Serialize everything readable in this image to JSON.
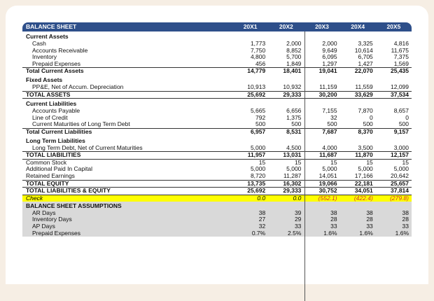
{
  "header": {
    "title": "BALANCE SHEET",
    "years": [
      "20X1",
      "20X2",
      "20X3",
      "20X4",
      "20X5"
    ]
  },
  "rows": [
    {
      "kind": "sec",
      "label": "Current Assets"
    },
    {
      "kind": "item",
      "label": "Cash",
      "values": [
        "1,773",
        "2,000",
        "2,000",
        "3,325",
        "4,816"
      ]
    },
    {
      "kind": "item",
      "label": "Accounts Receivable",
      "values": [
        "7,750",
        "8,852",
        "9,649",
        "10,614",
        "11,675"
      ]
    },
    {
      "kind": "item",
      "label": "Inventory",
      "values": [
        "4,800",
        "5,700",
        "6,095",
        "6,705",
        "7,375"
      ]
    },
    {
      "kind": "item",
      "label": "Prepaid Expenses",
      "values": [
        "456",
        "1,849",
        "1,297",
        "1,427",
        "1,569"
      ]
    },
    {
      "kind": "total",
      "label": "Total Current Assets",
      "values": [
        "14,779",
        "18,401",
        "19,041",
        "22,070",
        "25,435"
      ]
    },
    {
      "kind": "sec",
      "label": "Fixed Assets"
    },
    {
      "kind": "item",
      "label": "PP&E, Net of Accum. Depreciation",
      "values": [
        "10,913",
        "10,932",
        "11,159",
        "11,559",
        "12,099"
      ]
    },
    {
      "kind": "big",
      "label": "TOTAL ASSETS",
      "values": [
        "25,692",
        "29,333",
        "30,200",
        "33,629",
        "37,534"
      ]
    },
    {
      "kind": "sec",
      "label": "Current Liabilities"
    },
    {
      "kind": "item",
      "label": "Accounts Payable",
      "values": [
        "5,665",
        "6,656",
        "7,155",
        "7,870",
        "8,657"
      ]
    },
    {
      "kind": "item",
      "label": "Line of Credit",
      "values": [
        "792",
        "1,375",
        "32",
        "0",
        "0"
      ]
    },
    {
      "kind": "item",
      "label": "Current Maturities of Long Term Debt",
      "values": [
        "500",
        "500",
        "500",
        "500",
        "500"
      ]
    },
    {
      "kind": "total",
      "label": "Total Current Liabilities",
      "values": [
        "6,957",
        "8,531",
        "7,687",
        "8,370",
        "9,157"
      ]
    },
    {
      "kind": "sec",
      "label": "Long Term Liabilities"
    },
    {
      "kind": "item",
      "label": "Long Term Debt, Net of Current Maturities",
      "values": [
        "5,000",
        "4,500",
        "4,000",
        "3,500",
        "3,000"
      ]
    },
    {
      "kind": "big",
      "label": "TOTAL LIABILITIES",
      "values": [
        "11,957",
        "13,031",
        "11,687",
        "11,870",
        "12,157"
      ]
    },
    {
      "kind": "item2",
      "label": "Common Stock",
      "values": [
        "15",
        "15",
        "15",
        "15",
        "15"
      ]
    },
    {
      "kind": "item2",
      "label": "Additional Paid In Capital",
      "values": [
        "5,000",
        "5,000",
        "5,000",
        "5,000",
        "5,000"
      ]
    },
    {
      "kind": "item2",
      "label": "Retained Earnings",
      "values": [
        "8,720",
        "11,287",
        "14,051",
        "17,166",
        "20,642"
      ]
    },
    {
      "kind": "total0",
      "label": "TOTAL EQUITY",
      "values": [
        "13,735",
        "16,302",
        "19,066",
        "22,181",
        "25,657"
      ]
    },
    {
      "kind": "big",
      "label": "TOTAL LIABILITIES & EQUITY",
      "values": [
        "25,692",
        "29,333",
        "30,752",
        "34,051",
        "37,814"
      ]
    },
    {
      "kind": "check",
      "label": "Check",
      "values": [
        "0.0",
        "0.0",
        "(552.1)",
        "(422.4)",
        "(279.8)"
      ]
    },
    {
      "kind": "assump-h",
      "label": "BALANCE SHEET ASSUMPTIONS"
    },
    {
      "kind": "assump",
      "label": "AR Days",
      "values": [
        "38",
        "39",
        "38",
        "38",
        "38"
      ]
    },
    {
      "kind": "assump",
      "label": "Inventory Days",
      "values": [
        "27",
        "29",
        "28",
        "28",
        "28"
      ]
    },
    {
      "kind": "assump",
      "label": "AP Days",
      "values": [
        "32",
        "33",
        "33",
        "33",
        "33"
      ]
    },
    {
      "kind": "assump",
      "label": "Prepaid Expenses",
      "values": [
        "0.7%",
        "2.5%",
        "1.6%",
        "1.6%",
        "1.6%"
      ]
    }
  ]
}
